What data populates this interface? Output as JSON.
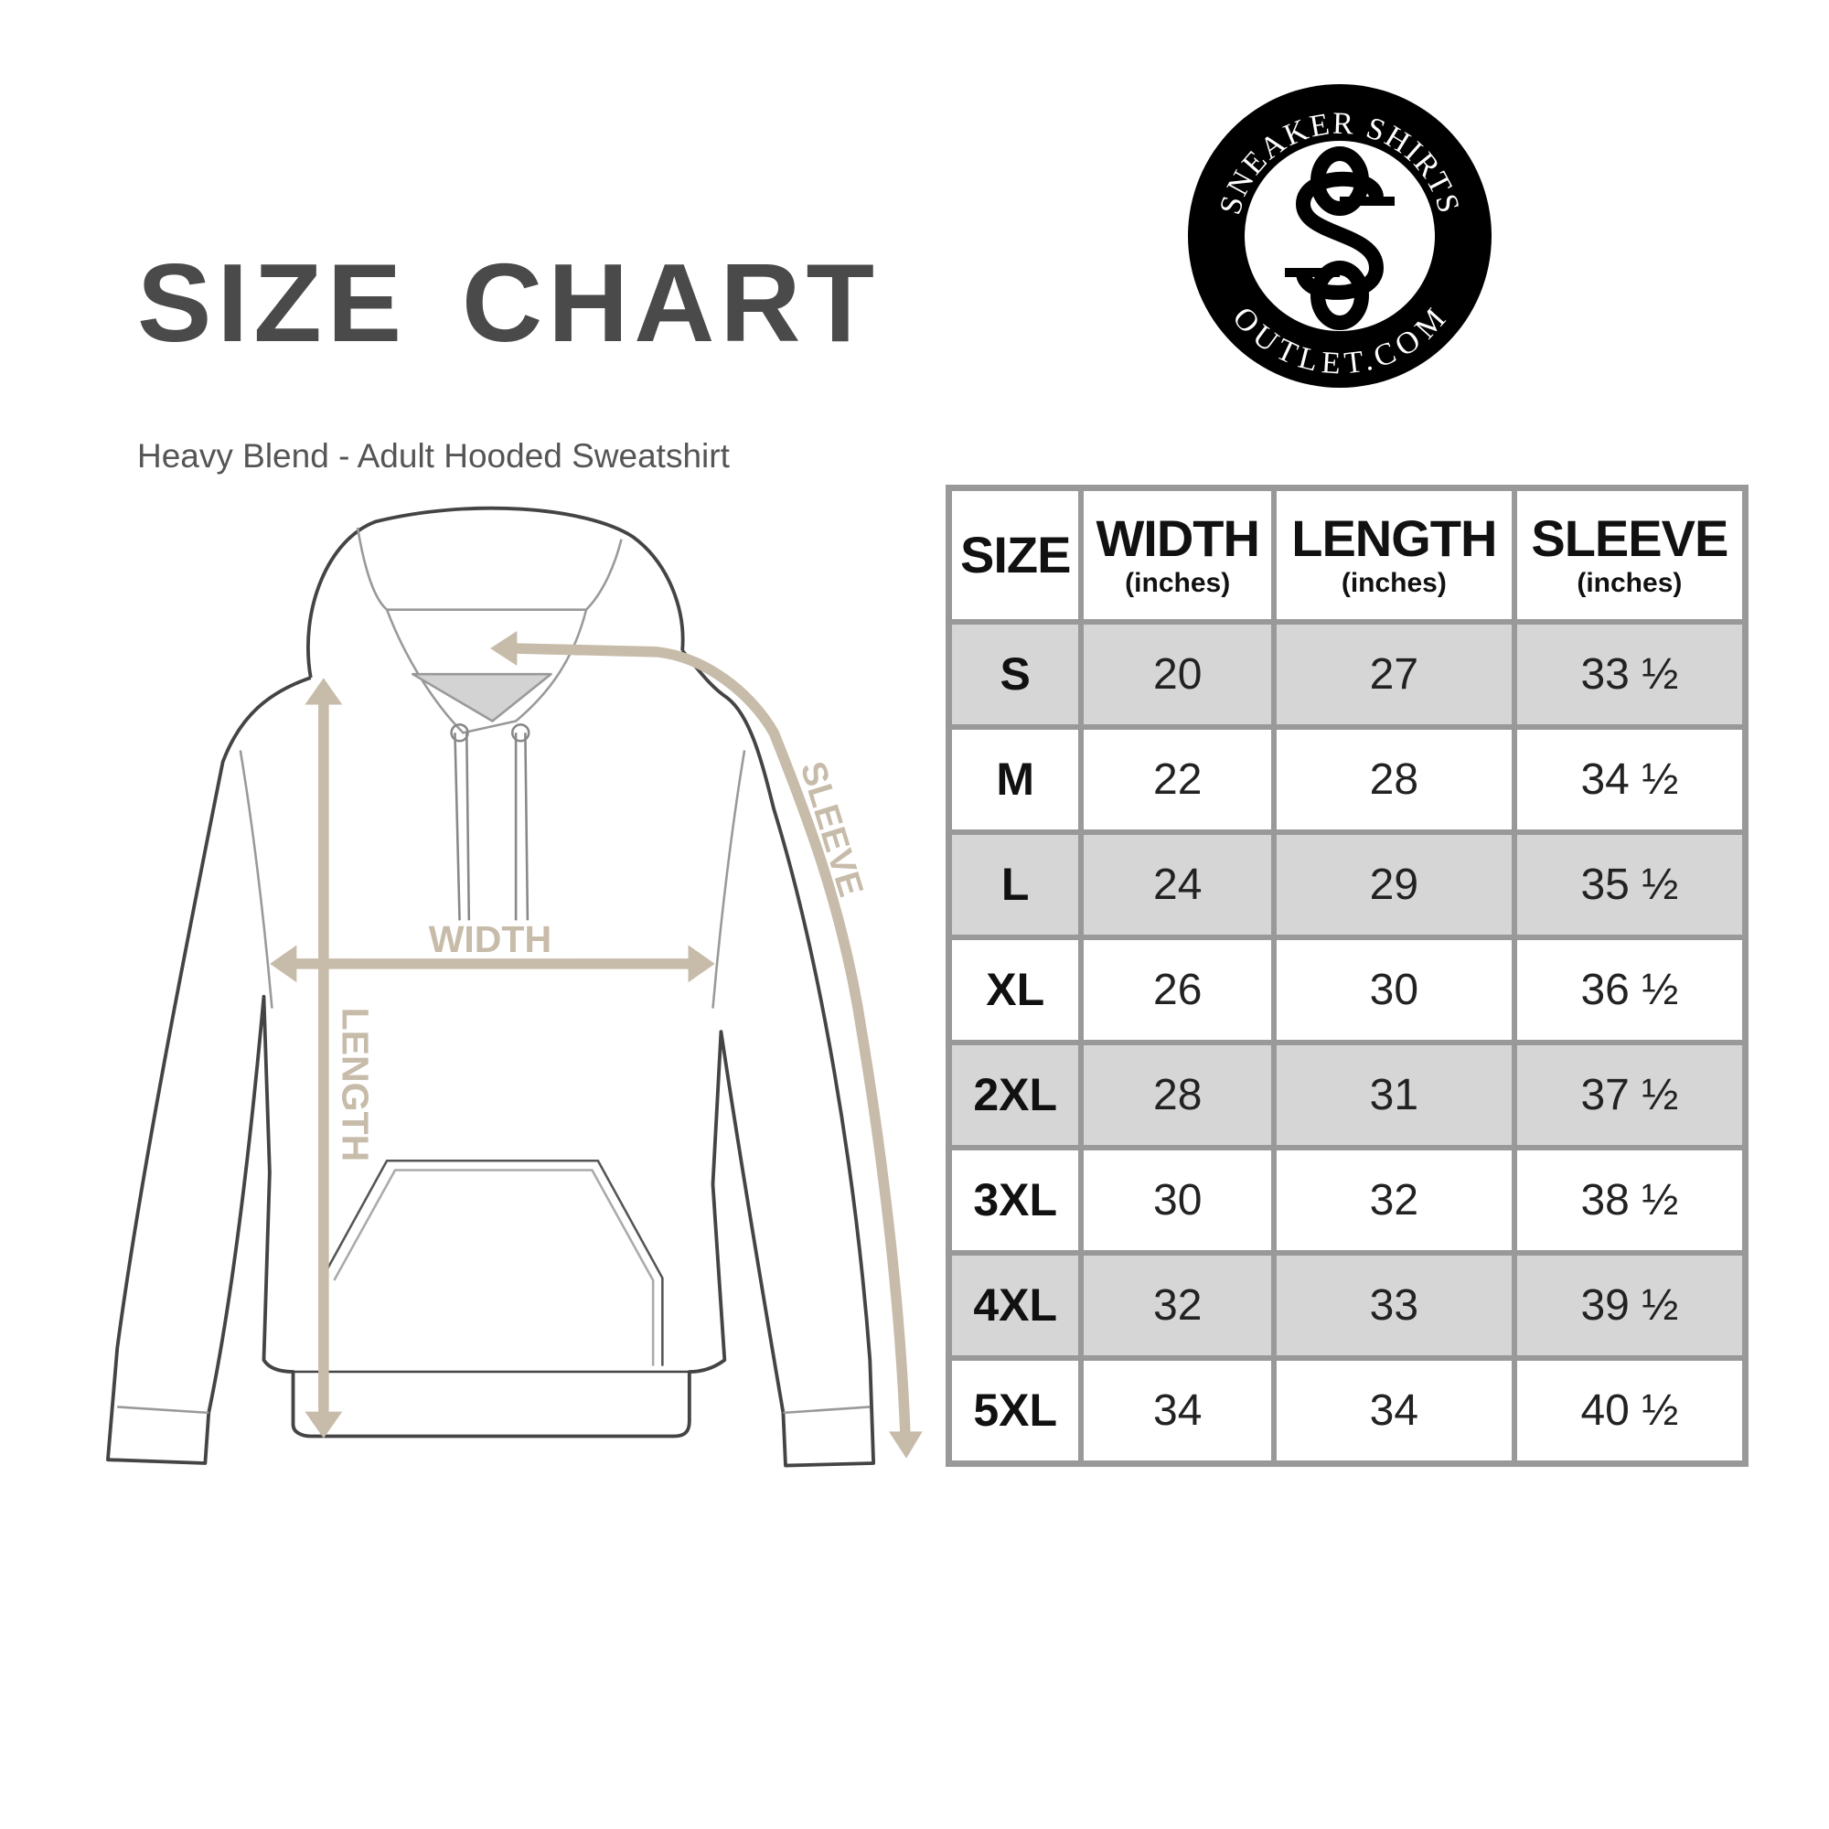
{
  "header": {
    "title": "SIZE CHART",
    "subtitle": "Heavy Blend - Adult Hooded Sweatshirt"
  },
  "logo": {
    "text_top": "SNEAKER SHIRTS",
    "text_bottom": "OUTLET.COM",
    "monogram": "SS"
  },
  "diagram": {
    "labels": {
      "width": "WIDTH",
      "length": "LENGTH",
      "sleeve": "SLEEVE"
    },
    "measure_color": "#c7bba9"
  },
  "table": {
    "headers": [
      {
        "label": "SIZE",
        "unit": ""
      },
      {
        "label": "WIDTH",
        "unit": "(inches)"
      },
      {
        "label": "LENGTH",
        "unit": "(inches)"
      },
      {
        "label": "SLEEVE",
        "unit": "(inches)"
      }
    ],
    "rows": [
      [
        "S",
        "20",
        "27",
        "33 ½"
      ],
      [
        "M",
        "22",
        "28",
        "34 ½"
      ],
      [
        "L",
        "24",
        "29",
        "35 ½"
      ],
      [
        "XL",
        "26",
        "30",
        "36 ½"
      ],
      [
        "2XL",
        "28",
        "31",
        "37 ½"
      ],
      [
        "3XL",
        "30",
        "32",
        "38 ½"
      ],
      [
        "4XL",
        "32",
        "33",
        "39 ½"
      ],
      [
        "5XL",
        "34",
        "34",
        "40 ½"
      ]
    ]
  }
}
